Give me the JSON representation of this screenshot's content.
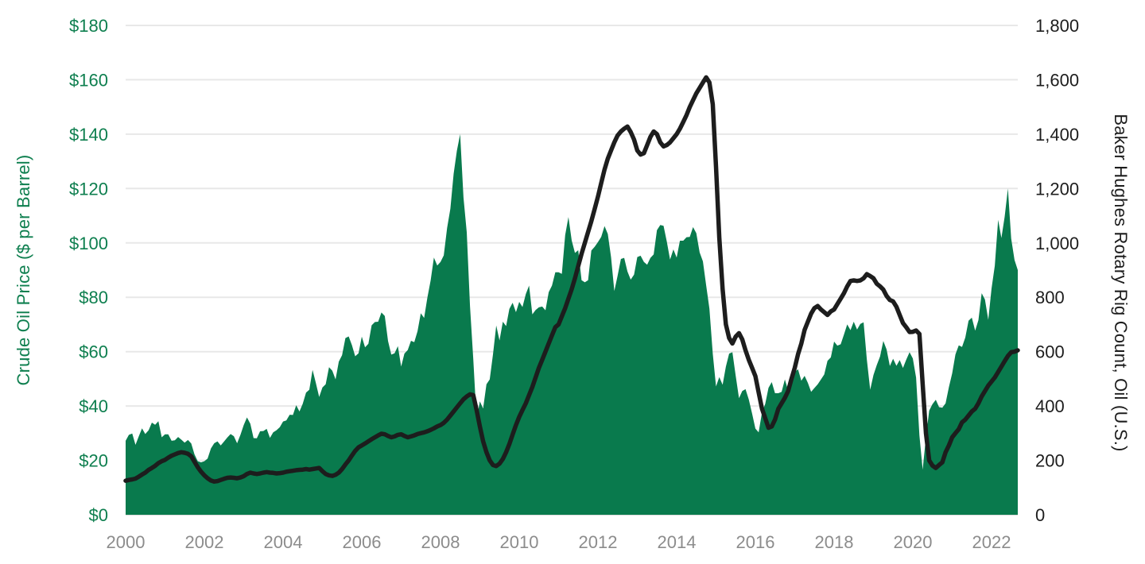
{
  "chart_data": {
    "type": "combo-area-line",
    "title": "",
    "grid": true,
    "legend": "none",
    "x_axis": {
      "interval": "monthly",
      "start": "2000-01",
      "end": "2022-09",
      "tick_labels": [
        "2000",
        "2002",
        "2004",
        "2006",
        "2008",
        "2010",
        "2012",
        "2014",
        "2016",
        "2018",
        "2020",
        "2022"
      ],
      "tick_color": "#8c8c8c"
    },
    "left_axis": {
      "label": "Crude Oil Price ($ per Barrel)",
      "min": 0,
      "max": 180,
      "step": 20,
      "tick_labels": [
        "$0",
        "$20",
        "$40",
        "$60",
        "$80",
        "$100",
        "$120",
        "$140",
        "$160",
        "$180"
      ],
      "color": "#0e7f4f"
    },
    "right_axis": {
      "label": "Baker Hughes Rotary Rig Count, Oil (U.S.)",
      "min": 0,
      "max": 1800,
      "step": 200,
      "tick_labels": [
        "0",
        "200",
        "400",
        "600",
        "800",
        "1,000",
        "1,200",
        "1,400",
        "1,600",
        "1,800"
      ],
      "color": "#1d1d1d"
    },
    "series": [
      {
        "name": "Crude Oil Price ($ per Barrel)",
        "type": "area",
        "axis": "left",
        "color": "#097a4d",
        "values": [
          27.2,
          29.4,
          29.9,
          25.7,
          28.8,
          31.8,
          29.7,
          31.1,
          33.9,
          33.1,
          34.4,
          28.5,
          29.6,
          29.6,
          27.2,
          27.4,
          28.6,
          27.6,
          26.5,
          27.5,
          26.2,
          22.2,
          19.7,
          19.3,
          19.7,
          20.7,
          24.4,
          26.3,
          27.0,
          25.5,
          26.9,
          28.4,
          29.7,
          28.9,
          26.3,
          29.4,
          33.0,
          35.8,
          33.5,
          28.2,
          28.1,
          30.7,
          30.8,
          31.6,
          28.3,
          30.3,
          31.1,
          32.2,
          34.3,
          34.7,
          36.8,
          36.7,
          40.3,
          38.0,
          40.8,
          44.9,
          46.0,
          53.3,
          48.5,
          43.3,
          46.8,
          48.0,
          54.3,
          53.0,
          49.8,
          56.3,
          58.7,
          65.0,
          65.6,
          62.4,
          58.3,
          59.4,
          65.5,
          61.6,
          62.9,
          69.7,
          70.9,
          71.0,
          74.4,
          73.1,
          63.9,
          58.9,
          59.4,
          62.0,
          54.5,
          59.3,
          60.6,
          64.0,
          63.5,
          67.5,
          74.1,
          72.4,
          79.9,
          86.2,
          94.6,
          91.7,
          93.0,
          95.4,
          105.5,
          112.6,
          125.4,
          133.9,
          140.0,
          116.7,
          103.9,
          76.7,
          57.3,
          35.0,
          41.7,
          39.1,
          48.0,
          49.8,
          59.0,
          69.6,
          64.1,
          71.0,
          69.4,
          75.7,
          78.0,
          74.5,
          78.3,
          76.4,
          81.2,
          84.3,
          73.7,
          75.3,
          76.3,
          76.6,
          75.2,
          81.9,
          84.3,
          89.2,
          89.2,
          88.6,
          102.9,
          109.5,
          100.9,
          96.3,
          97.3,
          86.3,
          85.5,
          86.3,
          97.2,
          98.6,
          100.3,
          102.2,
          106.2,
          103.3,
          94.7,
          82.3,
          87.9,
          94.1,
          94.5,
          89.5,
          86.5,
          88.3,
          94.8,
          95.3,
          93.0,
          92.0,
          94.5,
          95.8,
          104.7,
          106.6,
          106.3,
          100.5,
          93.9,
          97.6,
          94.6,
          100.8,
          100.8,
          102.1,
          102.2,
          105.8,
          103.6,
          96.5,
          93.2,
          84.4,
          75.8,
          59.3,
          47.2,
          50.6,
          47.8,
          54.5,
          59.3,
          59.8,
          51.2,
          42.9,
          45.5,
          46.2,
          42.4,
          37.2,
          31.7,
          30.3,
          37.6,
          40.8,
          46.7,
          48.8,
          44.7,
          44.7,
          45.2,
          49.8,
          45.7,
          52.0,
          52.5,
          53.5,
          49.3,
          51.1,
          48.5,
          45.2,
          46.6,
          48.0,
          49.8,
          51.6,
          56.6,
          57.9,
          63.7,
          62.2,
          62.7,
          66.3,
          70.0,
          67.9,
          71.0,
          68.1,
          70.2,
          70.8,
          57.0,
          46.0,
          51.4,
          55.0,
          58.2,
          63.9,
          60.8,
          54.7,
          57.4,
          54.8,
          56.9,
          54.0,
          57.0,
          59.8,
          57.5,
          50.5,
          29.2,
          16.6,
          28.6,
          38.3,
          40.7,
          42.3,
          39.6,
          39.4,
          41.0,
          47.0,
          52.0,
          59.0,
          62.3,
          61.7,
          65.2,
          71.4,
          72.5,
          67.7,
          71.6,
          81.5,
          79.2,
          71.7,
          83.2,
          91.6,
          108.5,
          101.8,
          109.6,
          120.0,
          101.6,
          93.7,
          90.0
        ]
      },
      {
        "name": "Baker Hughes Rotary Rig Count, Oil (U.S.)",
        "type": "line",
        "axis": "right",
        "color": "#1d1d1d",
        "stroke_width": 5.5,
        "values": [
          125,
          128,
          130,
          133,
          140,
          148,
          155,
          165,
          172,
          180,
          190,
          197,
          202,
          210,
          217,
          222,
          227,
          230,
          228,
          224,
          215,
          195,
          175,
          158,
          145,
          134,
          126,
          122,
          124,
          128,
          132,
          136,
          137,
          136,
          134,
          137,
          142,
          150,
          155,
          152,
          150,
          152,
          155,
          157,
          155,
          154,
          152,
          153,
          155,
          158,
          160,
          162,
          164,
          165,
          166,
          168,
          166,
          168,
          170,
          172,
          160,
          150,
          145,
          143,
          147,
          155,
          168,
          185,
          200,
          218,
          235,
          248,
          255,
          262,
          270,
          278,
          285,
          292,
          298,
          296,
          290,
          285,
          288,
          294,
          296,
          290,
          285,
          288,
          292,
          297,
          300,
          303,
          307,
          312,
          318,
          325,
          330,
          338,
          350,
          365,
          380,
          395,
          410,
          425,
          435,
          443,
          440,
          385,
          325,
          270,
          230,
          200,
          183,
          179,
          188,
          205,
          230,
          260,
          295,
          330,
          360,
          385,
          410,
          440,
          470,
          505,
          540,
          570,
          600,
          630,
          660,
          690,
          700,
          730,
          760,
          795,
          830,
          870,
          915,
          960,
          1000,
          1040,
          1080,
          1125,
          1170,
          1220,
          1270,
          1310,
          1340,
          1370,
          1395,
          1410,
          1420,
          1428,
          1408,
          1380,
          1340,
          1325,
          1330,
          1360,
          1390,
          1410,
          1400,
          1370,
          1355,
          1360,
          1370,
          1385,
          1400,
          1420,
          1445,
          1470,
          1500,
          1525,
          1550,
          1570,
          1590,
          1609,
          1590,
          1510,
          1280,
          1020,
          830,
          700,
          650,
          630,
          655,
          668,
          645,
          605,
          570,
          540,
          510,
          450,
          390,
          355,
          320,
          325,
          350,
          390,
          410,
          430,
          455,
          500,
          540,
          590,
          630,
          680,
          710,
          740,
          760,
          768,
          755,
          745,
          735,
          748,
          755,
          775,
          795,
          815,
          840,
          860,
          862,
          860,
          862,
          870,
          885,
          878,
          870,
          850,
          840,
          828,
          805,
          790,
          785,
          765,
          735,
          705,
          690,
          672,
          673,
          678,
          665,
          480,
          300,
          200,
          181,
          172,
          183,
          193,
          230,
          255,
          285,
          300,
          315,
          340,
          350,
          365,
          380,
          390,
          410,
          435,
          455,
          475,
          490,
          505,
          525,
          545,
          565,
          584,
          598,
          600,
          605
        ]
      }
    ]
  }
}
